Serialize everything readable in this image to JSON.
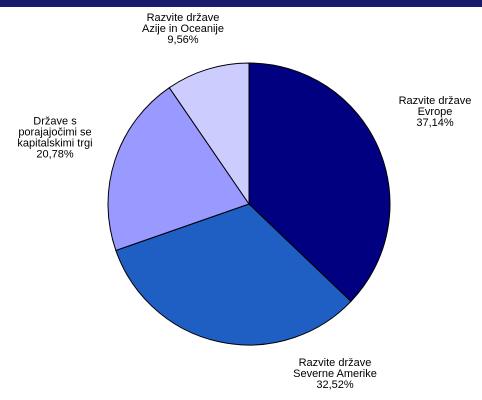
{
  "chart_data": {
    "type": "pie",
    "categories": [
      [
        "Razvite države",
        "Evrope"
      ],
      [
        "Razvite države",
        "Severne Amerike"
      ],
      [
        "Države s",
        "porajajočimi se",
        "kapitalskimi trgi"
      ],
      [
        "Razvite države",
        "Azije in Oceanije"
      ]
    ],
    "values": [
      37.14,
      32.52,
      20.78,
      9.56
    ],
    "value_labels": [
      "37,14%",
      "32,52%",
      "20,78%",
      "9,56%"
    ],
    "colors": [
      "#000080",
      "#1f5fc4",
      "#9999ff",
      "#ccccff"
    ]
  }
}
